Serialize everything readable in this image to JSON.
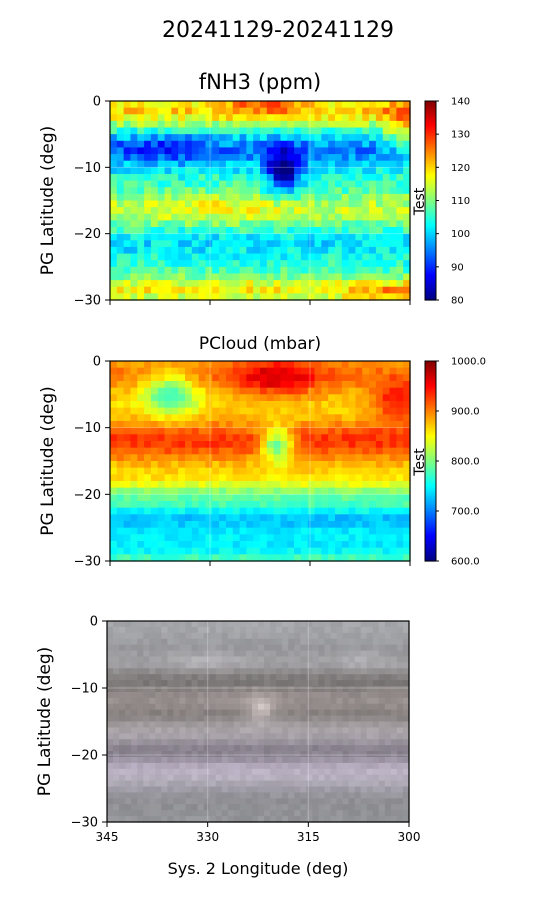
{
  "figure": {
    "suptitle": "20241129-20241129"
  },
  "chart_data": [
    {
      "type": "heatmap",
      "title": "fNH3 (ppm)",
      "ylabel": "PG Latitude (deg)",
      "xlabel": "",
      "xlim": [
        345,
        300
      ],
      "ylim": [
        -30,
        0
      ],
      "x_ticks": [
        345,
        330,
        315,
        300
      ],
      "x_ticklabels_shown": false,
      "y_ticks": [
        0,
        -10,
        -20,
        -30
      ],
      "y_ticklabels": [
        "0",
        "−10",
        "−20",
        "−30"
      ],
      "grid": true,
      "colormap": "jet",
      "colorbar": {
        "label": "Test",
        "range": [
          80,
          140
        ],
        "ticks": [
          140,
          130,
          120,
          110,
          100,
          90,
          80
        ],
        "ticklabels": [
          "140",
          "130",
          "120",
          "110",
          "100",
          "90",
          "80"
        ]
      },
      "nx": 44,
      "ny": 30,
      "field": {
        "base": 106,
        "bands": [
          {
            "lat": -1.5,
            "width": 2.5,
            "amp": 14
          },
          {
            "lat": -7.5,
            "width": 3.0,
            "amp": -11
          },
          {
            "lat": -16.5,
            "width": 2.5,
            "amp": 8
          },
          {
            "lat": -21.5,
            "width": 2.5,
            "amp": -5
          },
          {
            "lat": -28.5,
            "width": 2.0,
            "amp": 12
          }
        ],
        "blobs": [
          {
            "lon": 319,
            "lat": -10.5,
            "rlon": 2.5,
            "rlat": 3.0,
            "amp": -24
          },
          {
            "lon": 337,
            "lat": -7.0,
            "rlon": 7.0,
            "rlat": 2.0,
            "amp": -6
          },
          {
            "lon": 301,
            "lat": -4.0,
            "rlon": 3.0,
            "rlat": 4.0,
            "amp": 12
          },
          {
            "lon": 322,
            "lat": -0.5,
            "rlon": 6.0,
            "rlat": 1.5,
            "amp": 10
          },
          {
            "lon": 302,
            "lat": -29.0,
            "rlon": 6.0,
            "rlat": 1.5,
            "amp": 8
          },
          {
            "lon": 328,
            "lat": -16.0,
            "rlon": 8.0,
            "rlat": 2.0,
            "amp": 4
          }
        ],
        "noise": 4
      }
    },
    {
      "type": "heatmap",
      "title": "PCloud (mbar)",
      "ylabel": "PG Latitude (deg)",
      "xlabel": "",
      "xlim": [
        345,
        300
      ],
      "ylim": [
        -30,
        0
      ],
      "x_ticks": [
        345,
        330,
        315,
        300
      ],
      "x_ticklabels_shown": false,
      "y_ticks": [
        0,
        -10,
        -20,
        -30
      ],
      "y_ticklabels": [
        "0",
        "−10",
        "−20",
        "−30"
      ],
      "grid": true,
      "colormap": "jet",
      "colorbar": {
        "label": "Test",
        "range": [
          600,
          1000
        ],
        "ticks": [
          1000,
          900,
          800,
          700,
          600
        ],
        "ticklabels": [
          "1000.0",
          "900.0",
          "800.0",
          "700.0",
          "600.0"
        ]
      },
      "nx": 44,
      "ny": 30,
      "field": {
        "base": 860,
        "bands": [
          {
            "lat": -2.0,
            "width": 3.0,
            "amp": 40
          },
          {
            "lat": -12.0,
            "width": 3.0,
            "amp": 70
          },
          {
            "lat": -20.0,
            "width": 1.5,
            "amp": -50
          },
          {
            "lat": -23.5,
            "width": 2.5,
            "amp": -120
          },
          {
            "lat": -28.0,
            "width": 3.0,
            "amp": -110
          }
        ],
        "blobs": [
          {
            "lon": 320,
            "lat": -2.5,
            "rlon": 7.0,
            "rlat": 3.0,
            "amp": 70
          },
          {
            "lon": 302,
            "lat": -6.0,
            "rlon": 4.0,
            "rlat": 3.0,
            "amp": 70
          },
          {
            "lon": 336,
            "lat": -5.0,
            "rlon": 4.0,
            "rlat": 3.0,
            "amp": -100
          },
          {
            "lon": 320,
            "lat": -12.5,
            "rlon": 2.5,
            "rlat": 2.5,
            "amp": -130
          }
        ],
        "noise": 12
      }
    },
    {
      "type": "image",
      "title": "",
      "ylabel": "PG Latitude (deg)",
      "xlabel": "Sys. 2 Longitude (deg)",
      "xlim": [
        345,
        300
      ],
      "ylim": [
        -30,
        0
      ],
      "x_ticks": [
        345,
        330,
        315,
        300
      ],
      "x_ticklabels": [
        "345",
        "330",
        "315",
        "300"
      ],
      "y_ticks": [
        0,
        -10,
        -20,
        -30
      ],
      "y_ticklabels": [
        "0",
        "−10",
        "−20",
        "−30"
      ],
      "grid": true,
      "nx": 50,
      "ny": 34,
      "field": {
        "base": 0.58,
        "bands": [
          {
            "lat": -1.0,
            "width": 2.0,
            "amp": 0.06
          },
          {
            "lat": -6.5,
            "width": 1.5,
            "amp": 0.05
          },
          {
            "lat": -9.0,
            "width": 2.0,
            "amp": -0.12
          },
          {
            "lat": -14.0,
            "width": 1.5,
            "amp": -0.1
          },
          {
            "lat": -16.0,
            "width": 2.0,
            "amp": 0.05
          },
          {
            "lat": -19.5,
            "width": 1.5,
            "amp": -0.12
          },
          {
            "lat": -23.0,
            "width": 2.0,
            "amp": 0.08
          },
          {
            "lat": -27.0,
            "width": 2.5,
            "amp": -0.03
          }
        ],
        "blobs": [
          {
            "lon": 322,
            "lat": -13.0,
            "rlon": 2.0,
            "rlat": 2.0,
            "amp": 0.22
          },
          {
            "lon": 330,
            "lat": -6.0,
            "rlon": 5.0,
            "rlat": 1.5,
            "amp": 0.07
          },
          {
            "lon": 307,
            "lat": -6.0,
            "rlon": 4.0,
            "rlat": 1.5,
            "amp": 0.06
          }
        ],
        "noise": 0.03,
        "tint_band": {
          "lat": -21.0,
          "width": 4.0,
          "hex": "#b7a3c2"
        }
      }
    }
  ]
}
